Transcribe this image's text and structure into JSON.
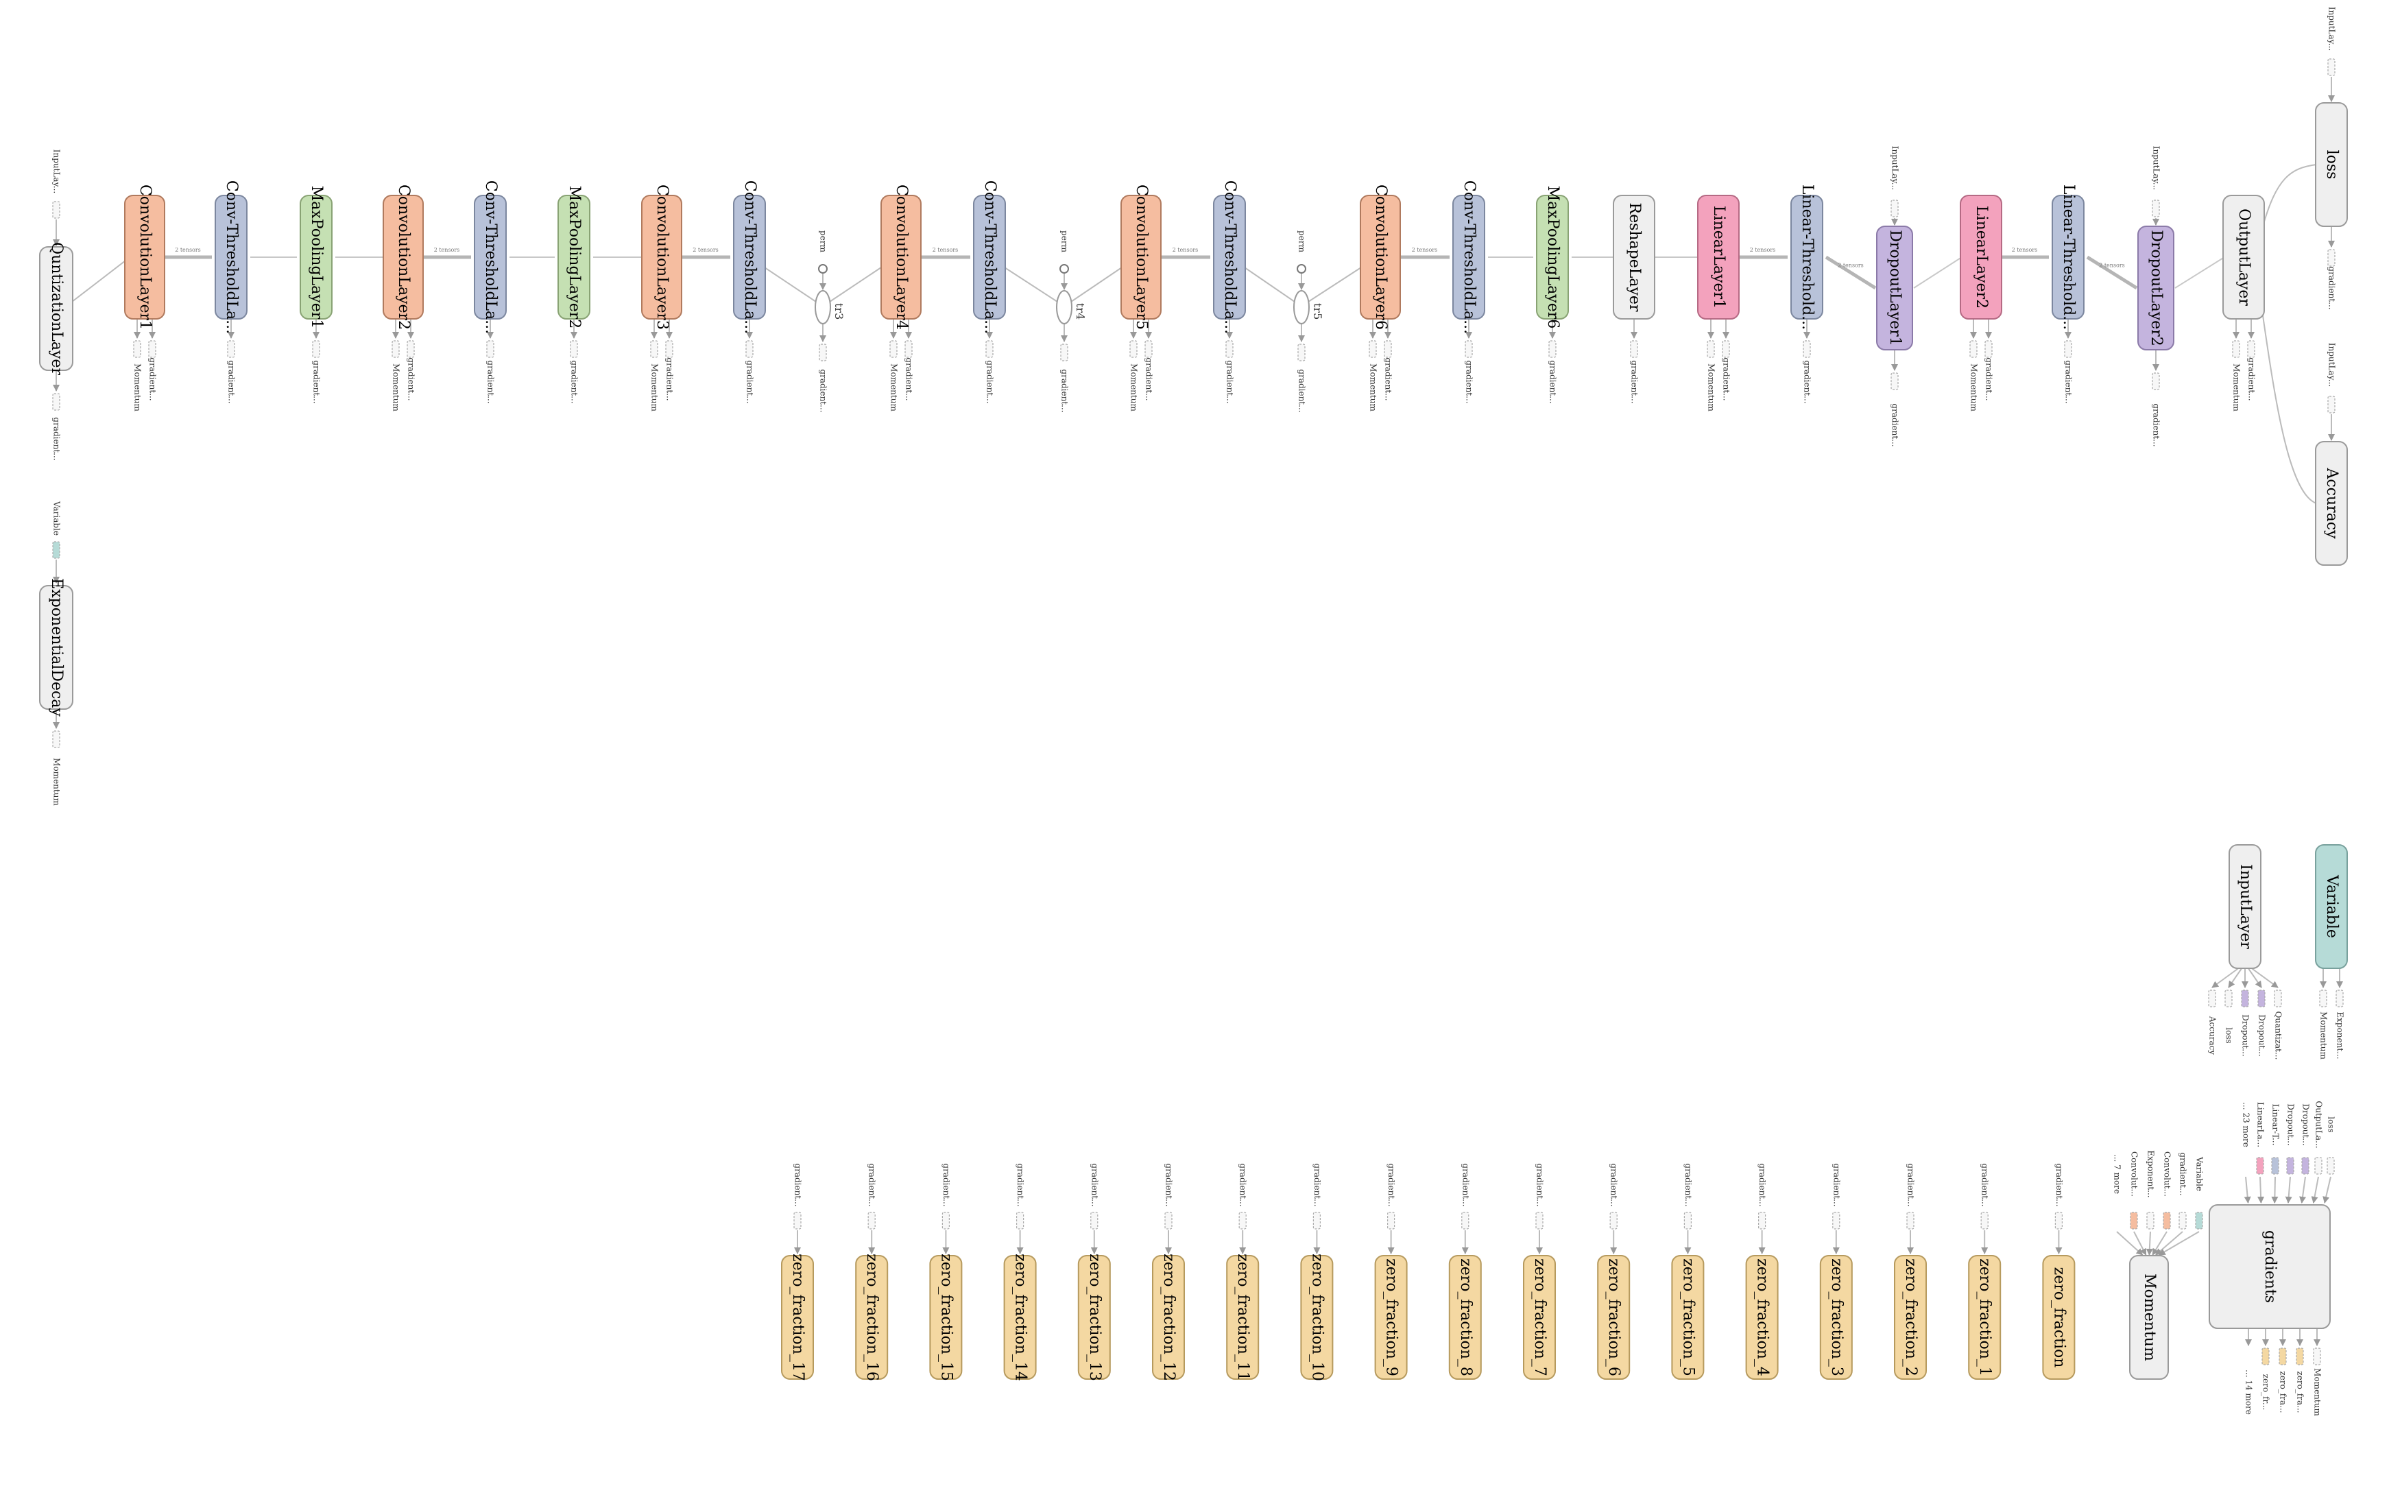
{
  "colors": {
    "conv": "#f5bda0",
    "threshold": "#b8c2d9",
    "pool": "#c5e0b3",
    "linear": "#f3a2bd",
    "dropout": "#c4b4de",
    "gray": "#efefef",
    "zero": "#f4d8a2",
    "variable": "#b6dbd7"
  },
  "main_row": [
    {
      "label": "ConvolutionLayer1",
      "type": "conv"
    },
    {
      "label": "Conv-ThresholdLa...",
      "type": "threshold"
    },
    {
      "label": "MaxPoolingLayer1",
      "type": "pool"
    },
    {
      "label": "ConvolutionLayer2",
      "type": "conv"
    },
    {
      "label": "Conv-ThresholdLa...",
      "type": "threshold"
    },
    {
      "label": "MaxPoolingLayer2",
      "type": "pool"
    },
    {
      "label": "ConvolutionLayer3",
      "type": "conv"
    },
    {
      "label": "Conv-ThresholdLa...",
      "type": "threshold"
    },
    {
      "label": "ConvolutionLayer4",
      "type": "conv"
    },
    {
      "label": "Conv-ThresholdLa...",
      "type": "threshold"
    },
    {
      "label": "ConvolutionLayer5",
      "type": "conv"
    },
    {
      "label": "Conv-ThresholdLa...",
      "type": "threshold"
    },
    {
      "label": "ConvolutionLayer6",
      "type": "conv"
    },
    {
      "label": "Conv-ThresholdLa...",
      "type": "threshold"
    },
    {
      "label": "MaxPoolingLayer6",
      "type": "pool"
    },
    {
      "label": "ReshapeLayer",
      "type": "gray"
    },
    {
      "label": "LinearLayer1",
      "type": "linear"
    },
    {
      "label": "Linear-Threshold...",
      "type": "threshold"
    },
    {
      "label": "DropoutLayer1",
      "type": "dropout"
    },
    {
      "label": "LinearLayer2",
      "type": "linear"
    },
    {
      "label": "Linear-Threshold...",
      "type": "threshold"
    },
    {
      "label": "DropoutLayer2",
      "type": "dropout"
    },
    {
      "label": "OutputLayer",
      "type": "gray"
    }
  ],
  "left_nodes": {
    "quantization": "QuntizationLayer",
    "exp_decay": "ExponentialDecay",
    "input_label": "InputLay...",
    "gradient_label": "gradient...",
    "variable_label": "Variable",
    "momentum_label": "Momentum"
  },
  "right_nodes": {
    "loss": "loss",
    "accuracy": "Accuracy",
    "input_label": "InputLay...",
    "gradient_label": "gradient..."
  },
  "transpose_ops": [
    {
      "label": "tr3",
      "perm": "perm"
    },
    {
      "label": "tr4",
      "perm": "perm"
    },
    {
      "label": "tr5",
      "perm": "perm"
    }
  ],
  "edge_labels": {
    "two_tensors": "2 tensors"
  },
  "small_labels": {
    "momentum": "Momentum",
    "gradient": "gradient...",
    "input": "InputLay..."
  },
  "zero_fractions": [
    "zero_fraction_17",
    "zero_fraction_16",
    "zero_fraction_15",
    "zero_fraction_14",
    "zero_fraction_13",
    "zero_fraction_12",
    "zero_fraction_11",
    "zero_fraction_10",
    "zero_fraction_9",
    "zero_fraction_8",
    "zero_fraction_7",
    "zero_fraction_6",
    "zero_fraction_5",
    "zero_fraction_4",
    "zero_fraction_3",
    "zero_fraction_2",
    "zero_fraction_1",
    "zero_fraction"
  ],
  "aux": {
    "input_layer": {
      "label": "InputLayer",
      "outputs": [
        "Accuracy",
        "loss",
        "Dropout...",
        "Dropout...",
        "Quantizat..."
      ]
    },
    "variable": {
      "label": "Variable",
      "outputs": [
        "Momentum",
        "Exponent..."
      ]
    },
    "momentum": {
      "label": "Momentum",
      "inputs": [
        "... 7 more",
        "Convolut...",
        "Exponent...",
        "Convolut...",
        "gradient...",
        "Variable"
      ]
    },
    "gradients": {
      "label": "gradients",
      "inputs": [
        "... 23 more",
        "LinearLa...",
        "Linear-T...",
        "Dropout...",
        "Dropout...",
        "OutputLa...",
        "loss"
      ],
      "outputs": [
        "... 14 more",
        "zero_fr...",
        "zero_fra...",
        "zero_fra...",
        "Momentum"
      ]
    }
  }
}
